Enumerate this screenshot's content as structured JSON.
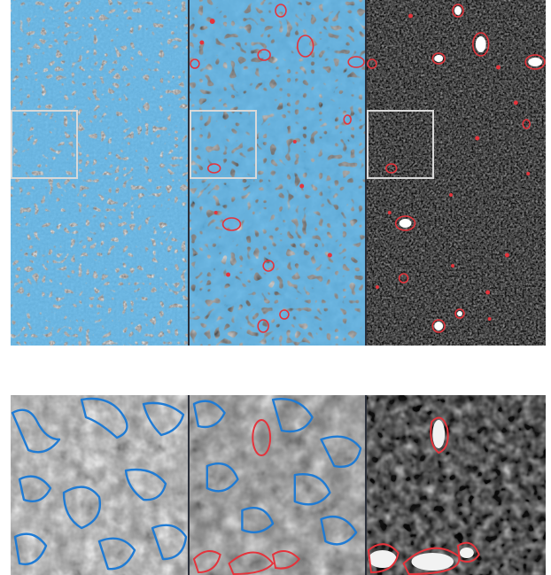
{
  "figure": {
    "rows": [
      {
        "id": "overview",
        "panels": [
          {
            "id": "overview-panel-1",
            "style": "bright-mottled",
            "outlines": [
              "blue"
            ],
            "zoom_region": true
          },
          {
            "id": "overview-panel-2",
            "style": "mid-gray",
            "outlines": [
              "blue",
              "red"
            ],
            "zoom_region": true
          },
          {
            "id": "overview-panel-3",
            "style": "dark-speckled",
            "outlines": [
              "red"
            ],
            "zoom_region": true
          }
        ]
      },
      {
        "id": "zoomed",
        "panels": [
          {
            "id": "zoom-panel-1",
            "style": "bright-mottled",
            "outlines": [
              "blue"
            ]
          },
          {
            "id": "zoom-panel-2",
            "style": "mid-gray",
            "outlines": [
              "blue",
              "red"
            ]
          },
          {
            "id": "zoom-panel-3",
            "style": "dark-speckled",
            "outlines": [
              "red"
            ]
          }
        ]
      }
    ]
  },
  "colors": {
    "outline_blue": "#1f7bd4",
    "outline_red": "#e5333b",
    "zoom_box": "#d8d8d8",
    "panel_divider": "#2a2f3a"
  },
  "icons": [
    "zoom-region-box"
  ]
}
